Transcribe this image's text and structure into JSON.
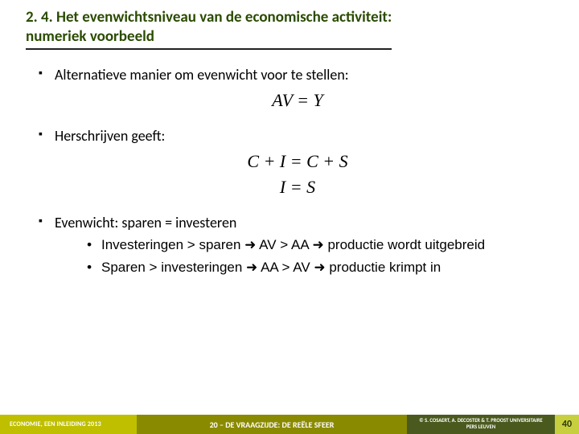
{
  "colors": {
    "title_text": "#2a4b00",
    "underline": "#222222",
    "body_text": "#000000",
    "footer_left_bg": "#bfbf00",
    "footer_mid_bg": "#8a8a00",
    "footer_right_bg": "#4a5a1e",
    "footer_page_bg": "#c7cf3e",
    "footer_page_text": "#2a3a0e",
    "footer_text": "#ffffff"
  },
  "header": {
    "title_line1": "2. 4. Het evenwichtsniveau van de economische activiteit:",
    "title_line2": "numeriek voorbeeld"
  },
  "content": {
    "bullets": [
      {
        "text": "Alternatieve manier om evenwicht voor te stellen:",
        "eq": [
          "AV = Y"
        ]
      },
      {
        "text": "Herschrijven geeft:",
        "eq": [
          "C + I = C + S",
          "I = S"
        ]
      },
      {
        "text": "Evenwicht: sparen = investeren",
        "sub": [
          "Investeringen > sparen → AV > AA → productie wordt uitgebreid",
          "Sparen > investeringen → AA > AV → productie krimpt in"
        ]
      }
    ]
  },
  "footer": {
    "left": "ECONOMIE, EEN INLEIDING 2013",
    "mid": "20 – DE VRAAGZIJDE: DE REËLE SFEER",
    "right": "© S. COSAERT, A. DECOSTER & T. PROOST UNIVERSITAIRE PERS LEUVEN",
    "page": "40"
  }
}
